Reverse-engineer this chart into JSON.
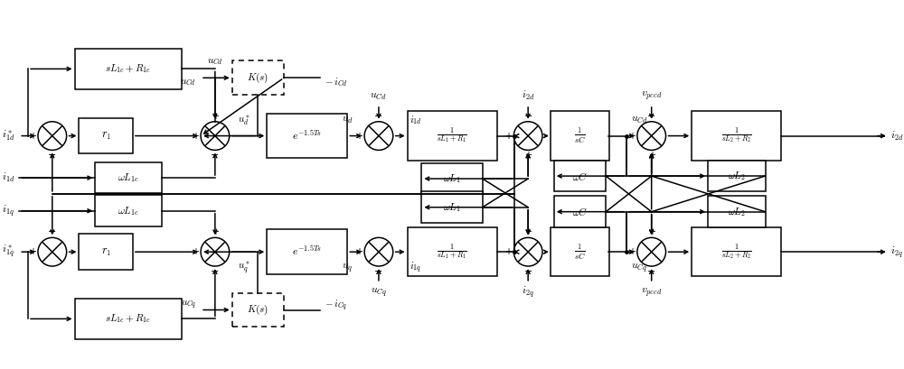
{
  "fig_width": 10.0,
  "fig_height": 4.09,
  "dpi": 100,
  "bg_color": "#ffffff",
  "ec": "#000000",
  "lw": 1.1
}
